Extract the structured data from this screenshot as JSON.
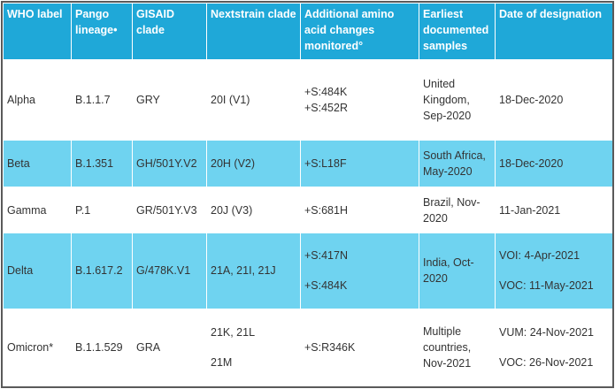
{
  "table": {
    "header": [
      "WHO label",
      "Pango lineage•",
      "GISAID clade",
      "Nextstrain clade",
      "Additional amino acid changes monitored°",
      "Earliest documented samples",
      "Date of designation"
    ],
    "rows": [
      [
        "Alpha",
        "B.1.1.7",
        "GRY",
        "20I (V1)",
        [
          "+S:484K",
          "+S:452R"
        ],
        "United Kingdom, Sep-2020",
        "18-Dec-2020"
      ],
      [
        "Beta",
        "B.1.351",
        "GH/501Y.V2",
        "20H (V2)",
        "+S:L18F",
        "South Africa, May-2020",
        "18-Dec-2020"
      ],
      [
        "Gamma",
        "P.1",
        "GR/501Y.V3",
        "20J (V3)",
        "+S:681H",
        "Brazil, Nov-2020",
        "11-Jan-2021"
      ],
      [
        "Delta",
        "B.1.617.2",
        "G/478K.V1",
        "21A, 21I, 21J",
        [
          "+S:417N",
          "+S:484K"
        ],
        "India, Oct-2020",
        [
          "VOI: 4-Apr-2021",
          "VOC: 11-May-2021"
        ]
      ],
      [
        "Omicron*",
        "B.1.1.529",
        "GRA",
        [
          "21K, 21L",
          "21M"
        ],
        "+S:R346K",
        "Multiple countries, Nov-2021",
        [
          "VUM: 24-Nov-2021",
          "VOC: 26-Nov-2021"
        ]
      ]
    ]
  }
}
